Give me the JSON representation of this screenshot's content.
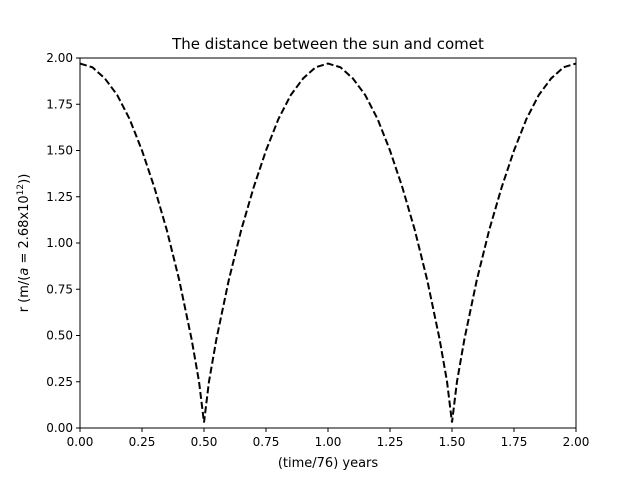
{
  "chart_data": {
    "type": "line",
    "title": "The distance between the sun and comet",
    "xlabel": "(time/76) years",
    "ylabel_parts": {
      "prefix": "r (m/(",
      "a": "a",
      "mid": " = 2.68x10",
      "exp": "12",
      "suffix": "))"
    },
    "xlim": [
      0,
      2
    ],
    "ylim": [
      0,
      2
    ],
    "x_ticks": [
      "0.00",
      "0.25",
      "0.50",
      "0.75",
      "1.00",
      "1.25",
      "1.50",
      "1.75",
      "2.00"
    ],
    "y_ticks": [
      "0.00",
      "0.25",
      "0.50",
      "0.75",
      "1.00",
      "1.25",
      "1.50",
      "1.75",
      "2.00"
    ],
    "grid": false,
    "series": [
      {
        "line_style": "dashed",
        "color": "#000000",
        "x": [
          0.0,
          0.05,
          0.1,
          0.15,
          0.2,
          0.25,
          0.3,
          0.35,
          0.4,
          0.45,
          0.48,
          0.5,
          0.52,
          0.55,
          0.6,
          0.65,
          0.7,
          0.75,
          0.8,
          0.85,
          0.9,
          0.95,
          1.0,
          1.05,
          1.1,
          1.15,
          1.2,
          1.25,
          1.3,
          1.35,
          1.4,
          1.45,
          1.48,
          1.5,
          1.52,
          1.55,
          1.6,
          1.65,
          1.7,
          1.75,
          1.8,
          1.85,
          1.9,
          1.95,
          2.0
        ],
        "y": [
          1.97,
          1.95,
          1.89,
          1.8,
          1.67,
          1.5,
          1.3,
          1.07,
          0.8,
          0.48,
          0.25,
          0.03,
          0.25,
          0.48,
          0.8,
          1.07,
          1.3,
          1.5,
          1.67,
          1.8,
          1.89,
          1.95,
          1.97,
          1.95,
          1.89,
          1.8,
          1.67,
          1.5,
          1.3,
          1.07,
          0.8,
          0.48,
          0.25,
          0.03,
          0.25,
          0.48,
          0.8,
          1.07,
          1.3,
          1.5,
          1.67,
          1.8,
          1.89,
          1.95,
          1.97
        ]
      }
    ]
  }
}
